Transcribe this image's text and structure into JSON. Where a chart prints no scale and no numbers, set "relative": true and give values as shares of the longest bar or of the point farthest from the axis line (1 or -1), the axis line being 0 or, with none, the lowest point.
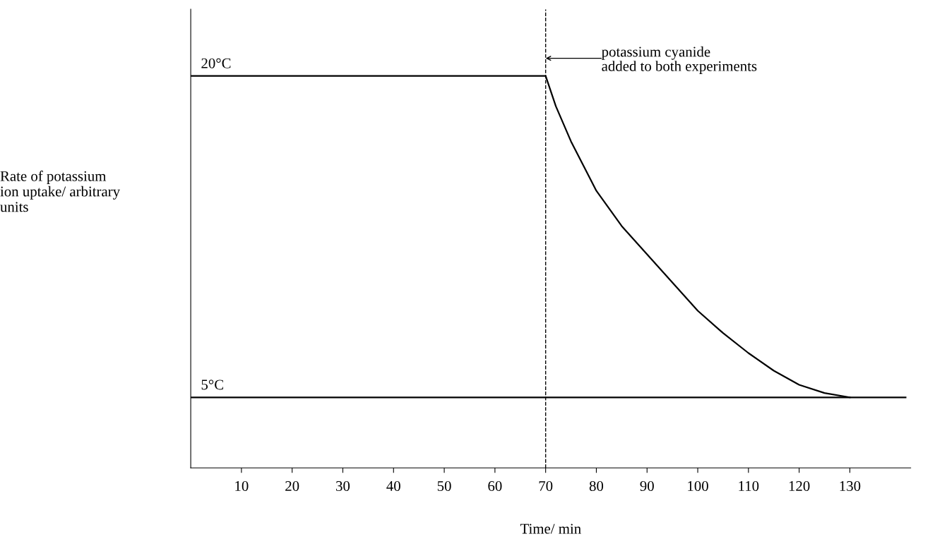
{
  "chart_data": {
    "type": "line",
    "relative": true,
    "xlabel": "Time/ min",
    "ylabel": "Rate of potassium\nion uptake/ arbitrary\nunits",
    "xlim": [
      0,
      142
    ],
    "xticks": [
      10,
      20,
      30,
      40,
      50,
      60,
      70,
      80,
      90,
      100,
      110,
      120,
      130
    ],
    "series": [
      {
        "name": "20°C",
        "color": "#000000",
        "x": [
          0,
          70,
          72,
          75,
          80,
          85,
          90,
          95,
          100,
          105,
          110,
          115,
          120,
          125,
          130
        ],
        "values": [
          1.0,
          1.0,
          0.923,
          0.833,
          0.707,
          0.617,
          0.545,
          0.473,
          0.401,
          0.344,
          0.293,
          0.248,
          0.212,
          0.191,
          0.18
        ]
      },
      {
        "name": "5°C",
        "color": "#000000",
        "x": [
          0,
          141
        ],
        "values": [
          0.18,
          0.18
        ]
      }
    ],
    "ref_lines": [
      {
        "axis": "x",
        "value": 70,
        "color": "#000000",
        "line_style": "dashed"
      }
    ],
    "annotations": [
      "potassium cyanide\nadded to both experiments"
    ],
    "grid": false,
    "legend": false,
    "marker": "none",
    "line_style": "solid"
  }
}
